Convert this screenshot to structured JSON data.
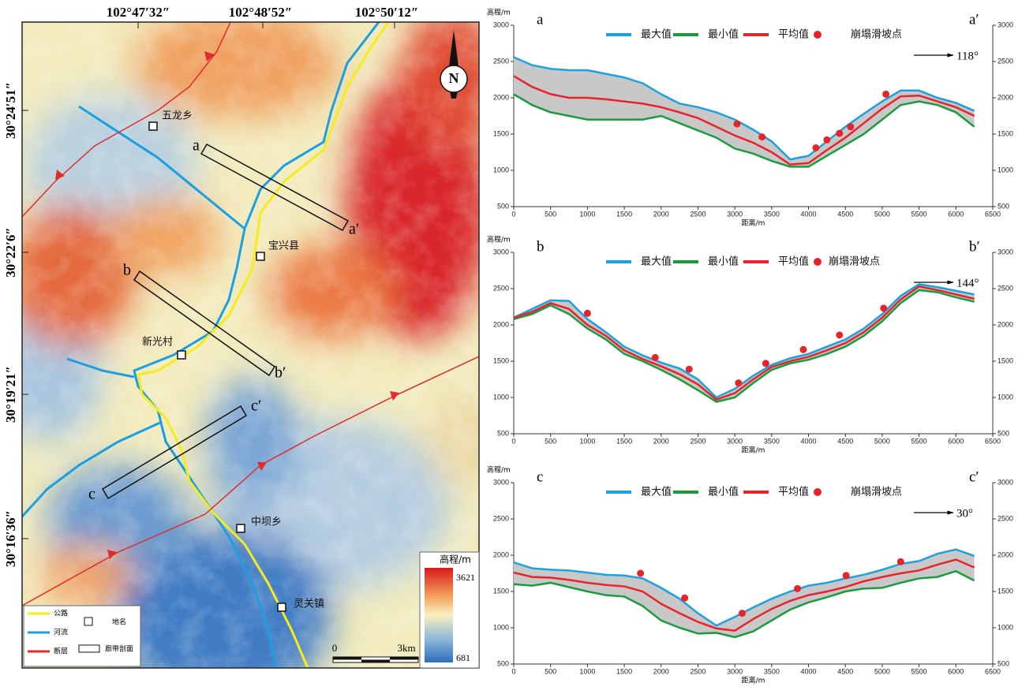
{
  "map": {
    "top_labels": [
      "102°47′32″",
      "102°48′52″",
      "102°50′12″"
    ],
    "left_labels": [
      "30°24′51″",
      "30°22′6″",
      "30°19′21″",
      "30°16′36″"
    ],
    "places": [
      "五龙乡",
      "宝兴县",
      "新光村",
      "中坝乡",
      "灵关镇"
    ],
    "profiles": [
      "a",
      "a′",
      "b",
      "b′",
      "c",
      "c′"
    ],
    "north": "N",
    "legend": [
      "公路",
      "河流",
      "断层",
      "地名",
      "廊带剖面"
    ],
    "colorbar": {
      "title": "高程/m",
      "max": 3621,
      "min": 681
    },
    "scale": [
      "0",
      "3km"
    ]
  },
  "chart_data": [
    {
      "type": "line",
      "label_left": "a",
      "label_right": "a′",
      "direction": "118°",
      "xlabel": "距离/m",
      "ylabel": "高程/m",
      "x": [
        0,
        250,
        500,
        750,
        1000,
        1250,
        1500,
        1750,
        2000,
        2250,
        2500,
        2750,
        3000,
        3250,
        3500,
        3750,
        4000,
        4250,
        4500,
        4750,
        5000,
        5250,
        5500,
        5750,
        6000,
        6250
      ],
      "band_color": "#c8c8c8",
      "series": [
        {
          "name": "最大值",
          "color": "#1ba1e2",
          "values": [
            2560,
            2450,
            2400,
            2380,
            2380,
            2330,
            2280,
            2200,
            2050,
            1920,
            1870,
            1800,
            1700,
            1560,
            1400,
            1150,
            1200,
            1400,
            1600,
            1780,
            1950,
            2100,
            2100,
            2000,
            1930,
            1820
          ]
        },
        {
          "name": "最小值",
          "color": "#1a9b3c",
          "values": [
            2050,
            1900,
            1800,
            1750,
            1700,
            1700,
            1700,
            1700,
            1750,
            1650,
            1550,
            1450,
            1300,
            1230,
            1130,
            1050,
            1050,
            1200,
            1350,
            1500,
            1700,
            1900,
            1950,
            1900,
            1800,
            1600
          ]
        },
        {
          "name": "平均值",
          "color": "#e8232a",
          "values": [
            2300,
            2150,
            2050,
            2000,
            2000,
            1980,
            1950,
            1920,
            1870,
            1800,
            1720,
            1600,
            1480,
            1380,
            1250,
            1080,
            1100,
            1280,
            1450,
            1650,
            1850,
            2020,
            2030,
            1950,
            1870,
            1750
          ]
        },
        {
          "name": "崩塌滑坡点",
          "type": "scatter",
          "color": "#e8232a",
          "x": [
            3030,
            3370,
            4100,
            4250,
            4420,
            4570,
            5050
          ],
          "values": [
            1640,
            1460,
            1310,
            1420,
            1510,
            1600,
            2050
          ]
        }
      ],
      "xlim": [
        0,
        6500
      ],
      "xticks": [
        0,
        500,
        1000,
        1500,
        2000,
        2500,
        3000,
        3500,
        4000,
        4500,
        5000,
        5500,
        6000,
        6500
      ],
      "ylim": [
        500,
        3000
      ],
      "yticks": [
        500,
        1000,
        1500,
        2000,
        2500,
        3000
      ],
      "y2lim": [
        500,
        3000
      ],
      "y2ticks": [
        500,
        1000,
        1500,
        2000,
        2500,
        3000
      ]
    },
    {
      "type": "line",
      "label_left": "b",
      "label_right": "b′",
      "direction": "144°",
      "xlabel": "距离/m",
      "ylabel": "高程/m",
      "x": [
        0,
        250,
        500,
        750,
        1000,
        1250,
        1500,
        1750,
        2000,
        2250,
        2500,
        2750,
        3000,
        3250,
        3500,
        3750,
        4000,
        4250,
        4500,
        4750,
        5000,
        5250,
        5500,
        5750,
        6000,
        6250
      ],
      "band_color": "#c8c8c8",
      "series": [
        {
          "name": "最大值",
          "color": "#1ba1e2",
          "values": [
            2100,
            2220,
            2340,
            2330,
            2080,
            1900,
            1700,
            1580,
            1480,
            1400,
            1250,
            1000,
            1120,
            1300,
            1450,
            1540,
            1600,
            1700,
            1800,
            1950,
            2150,
            2400,
            2560,
            2520,
            2470,
            2420
          ]
        },
        {
          "name": "最小值",
          "color": "#1a9b3c",
          "values": [
            2080,
            2150,
            2270,
            2150,
            1950,
            1800,
            1600,
            1500,
            1380,
            1250,
            1100,
            940,
            1000,
            1200,
            1380,
            1470,
            1520,
            1600,
            1700,
            1850,
            2050,
            2300,
            2480,
            2450,
            2380,
            2320
          ]
        },
        {
          "name": "平均值",
          "color": "#e8232a",
          "values": [
            2100,
            2180,
            2300,
            2220,
            2000,
            1850,
            1650,
            1530,
            1430,
            1320,
            1180,
            970,
            1060,
            1250,
            1420,
            1500,
            1560,
            1650,
            1750,
            1900,
            2100,
            2350,
            2530,
            2480,
            2420,
            2360
          ]
        },
        {
          "name": "崩塌滑坡点",
          "type": "scatter",
          "color": "#e8232a",
          "x": [
            1000,
            1920,
            2380,
            3050,
            3420,
            3930,
            4420,
            5020
          ],
          "values": [
            2160,
            1550,
            1390,
            1200,
            1470,
            1660,
            1860,
            2230
          ]
        }
      ],
      "xlim": [
        0,
        6500
      ],
      "xticks": [
        0,
        500,
        1000,
        1500,
        2000,
        2500,
        3000,
        3500,
        4000,
        4500,
        5000,
        5500,
        6000,
        6500
      ],
      "ylim": [
        500,
        3000
      ],
      "yticks": [
        500,
        1000,
        1500,
        2000,
        2500,
        3000
      ],
      "y2lim": [
        500,
        3000
      ],
      "y2ticks": [
        500,
        1000,
        1500,
        2000,
        2500,
        3000
      ]
    },
    {
      "type": "line",
      "label_left": "c",
      "label_right": "c′",
      "direction": "30°",
      "xlabel": "距离/m",
      "ylabel": "高程/m",
      "x": [
        0,
        250,
        500,
        750,
        1000,
        1250,
        1500,
        1750,
        2000,
        2250,
        2500,
        2750,
        3000,
        3250,
        3500,
        3750,
        4000,
        4250,
        4500,
        4750,
        5000,
        5250,
        5500,
        5750,
        6000,
        6250
      ],
      "band_color": "#c8c8c8",
      "series": [
        {
          "name": "最大值",
          "color": "#1ba1e2",
          "values": [
            1900,
            1820,
            1800,
            1790,
            1760,
            1730,
            1720,
            1680,
            1550,
            1400,
            1200,
            1030,
            1150,
            1280,
            1400,
            1500,
            1580,
            1620,
            1680,
            1730,
            1800,
            1880,
            1920,
            2020,
            2080,
            1990
          ]
        },
        {
          "name": "最小值",
          "color": "#1a9b3c",
          "values": [
            1600,
            1580,
            1620,
            1560,
            1500,
            1450,
            1430,
            1300,
            1100,
            1000,
            920,
            930,
            870,
            950,
            1100,
            1250,
            1350,
            1420,
            1500,
            1540,
            1550,
            1620,
            1680,
            1700,
            1780,
            1650
          ]
        },
        {
          "name": "平均值",
          "color": "#e8232a",
          "values": [
            1760,
            1700,
            1690,
            1660,
            1620,
            1590,
            1570,
            1500,
            1330,
            1200,
            1080,
            990,
            960,
            1120,
            1260,
            1370,
            1450,
            1500,
            1560,
            1640,
            1700,
            1750,
            1790,
            1870,
            1940,
            1830
          ]
        },
        {
          "name": "崩塌滑坡点",
          "type": "scatter",
          "color": "#e8232a",
          "x": [
            1720,
            2320,
            3100,
            3850,
            4510,
            5250
          ],
          "values": [
            1750,
            1410,
            1200,
            1540,
            1720,
            1910
          ]
        }
      ],
      "xlim": [
        0,
        6500
      ],
      "xticks": [
        0,
        500,
        1000,
        1500,
        2000,
        2500,
        3000,
        3500,
        4000,
        4500,
        5000,
        5500,
        6000,
        6500
      ],
      "ylim": [
        500,
        3000
      ],
      "yticks": [
        500,
        1000,
        1500,
        2000,
        2500,
        3000
      ],
      "y2lim": [
        500,
        3000
      ],
      "y2ticks": [
        500,
        1000,
        1500,
        2000,
        2500,
        3000
      ]
    }
  ]
}
